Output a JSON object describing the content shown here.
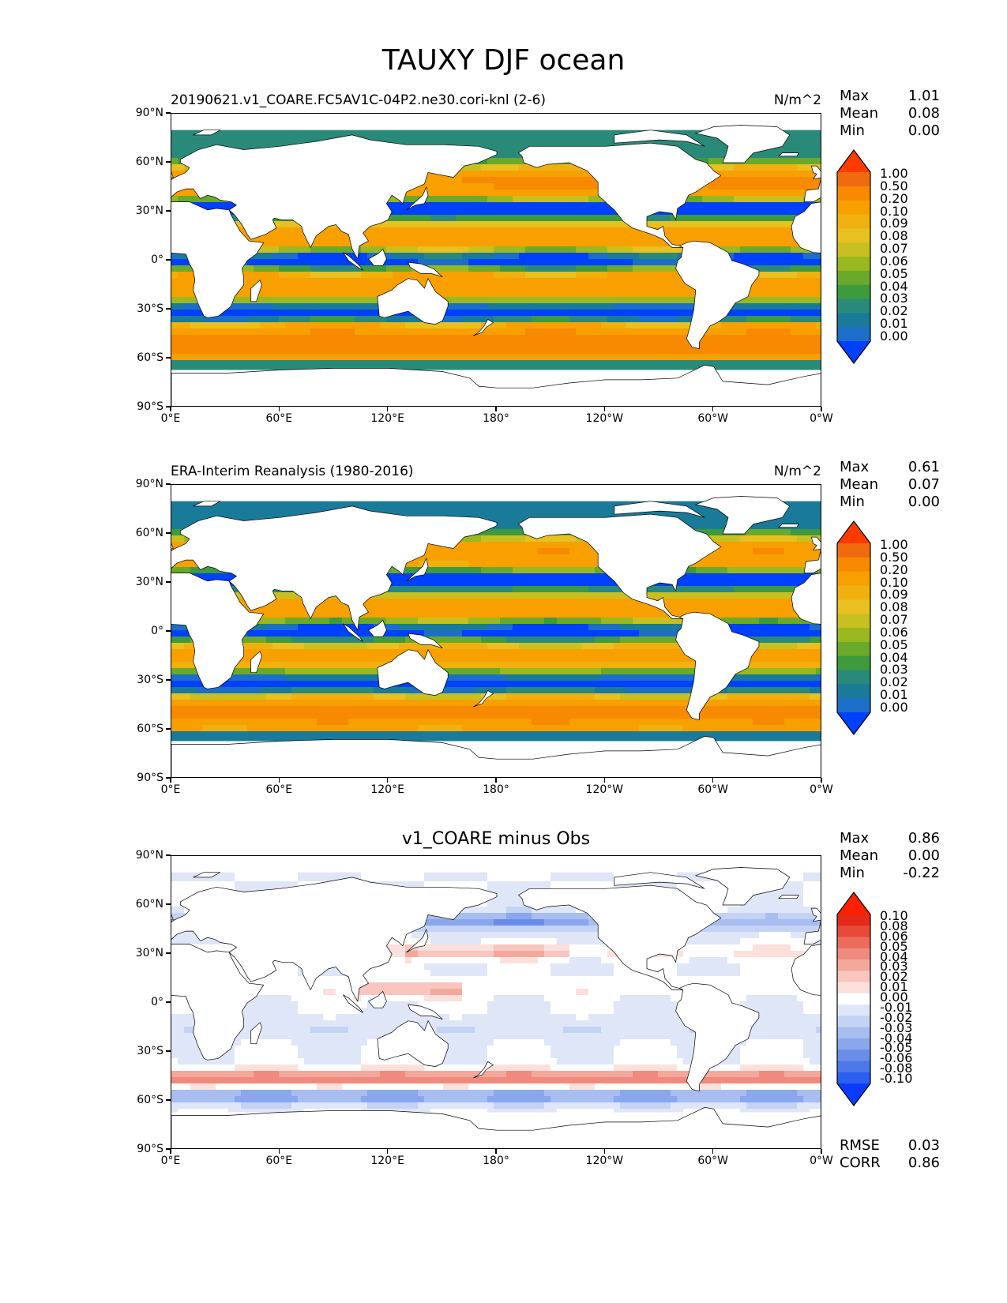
{
  "title": "TAUXY DJF ocean",
  "units": "N/m^2",
  "lat_ticks": [
    "90°N",
    "60°N",
    "30°N",
    "0°",
    "30°S",
    "60°S",
    "90°S"
  ],
  "lon_ticks": [
    "0°E",
    "60°E",
    "120°E",
    "180°",
    "120°W",
    "60°W",
    "0°W"
  ],
  "panels": [
    {
      "title": "20190621.v1_COARE.FC5AV1C-04P2.ne30.cori-knl (2-6)",
      "units": "N/m^2",
      "stats": [
        {
          "label": "Max",
          "value": "1.01"
        },
        {
          "label": "Mean",
          "value": "0.08"
        },
        {
          "label": "Min",
          "value": "0.00"
        }
      ],
      "colorbar": [
        "1.00",
        "0.50",
        "0.20",
        "0.10",
        "0.09",
        "0.08",
        "0.07",
        "0.06",
        "0.05",
        "0.04",
        "0.03",
        "0.02",
        "0.01",
        "0.00"
      ]
    },
    {
      "title": "ERA-Interim Reanalysis (1980-2016)",
      "units": "N/m^2",
      "stats": [
        {
          "label": "Max",
          "value": "0.61"
        },
        {
          "label": "Mean",
          "value": "0.07"
        },
        {
          "label": "Min",
          "value": "0.00"
        }
      ],
      "colorbar": [
        "1.00",
        "0.50",
        "0.20",
        "0.10",
        "0.09",
        "0.08",
        "0.07",
        "0.06",
        "0.05",
        "0.04",
        "0.03",
        "0.02",
        "0.01",
        "0.00"
      ]
    },
    {
      "title": "v1_COARE minus Obs",
      "stats": [
        {
          "label": "Max",
          "value": "0.86"
        },
        {
          "label": "Mean",
          "value": "0.00"
        },
        {
          "label": "Min",
          "value": "-0.22"
        }
      ],
      "footer_stats": [
        {
          "label": "RMSE",
          "value": "0.03"
        },
        {
          "label": "CORR",
          "value": "0.86"
        }
      ],
      "colorbar": [
        "0.10",
        "0.08",
        "0.06",
        "0.05",
        "0.04",
        "0.03",
        "0.02",
        "0.01",
        "0.00",
        "-0.01",
        "-0.02",
        "-0.03",
        "-0.04",
        "-0.05",
        "-0.06",
        "-0.08",
        "-0.10"
      ]
    }
  ],
  "colors": {
    "magnitude": [
      "#0040ff",
      "#1c6ec8",
      "#1a7a9a",
      "#2a8a7a",
      "#3d9a3d",
      "#6aaa2a",
      "#9ab820",
      "#c8c020",
      "#e8c020",
      "#f0b010",
      "#f7a000",
      "#f78a00",
      "#f06a10",
      "#ff3a00"
    ],
    "diff": [
      "#0a3cff",
      "#2c5fef",
      "#4d78e8",
      "#6a8ee8",
      "#8aa6ec",
      "#a8bdf0",
      "#c4d2f4",
      "#dfe6f8",
      "#ffffff",
      "#fbe0dc",
      "#f8c6be",
      "#f4a89c",
      "#f08a7c",
      "#ec6c5c",
      "#e84a3a",
      "#e42a1a",
      "#ff2000"
    ],
    "land": "#ffffff",
    "coast": "#000000"
  }
}
